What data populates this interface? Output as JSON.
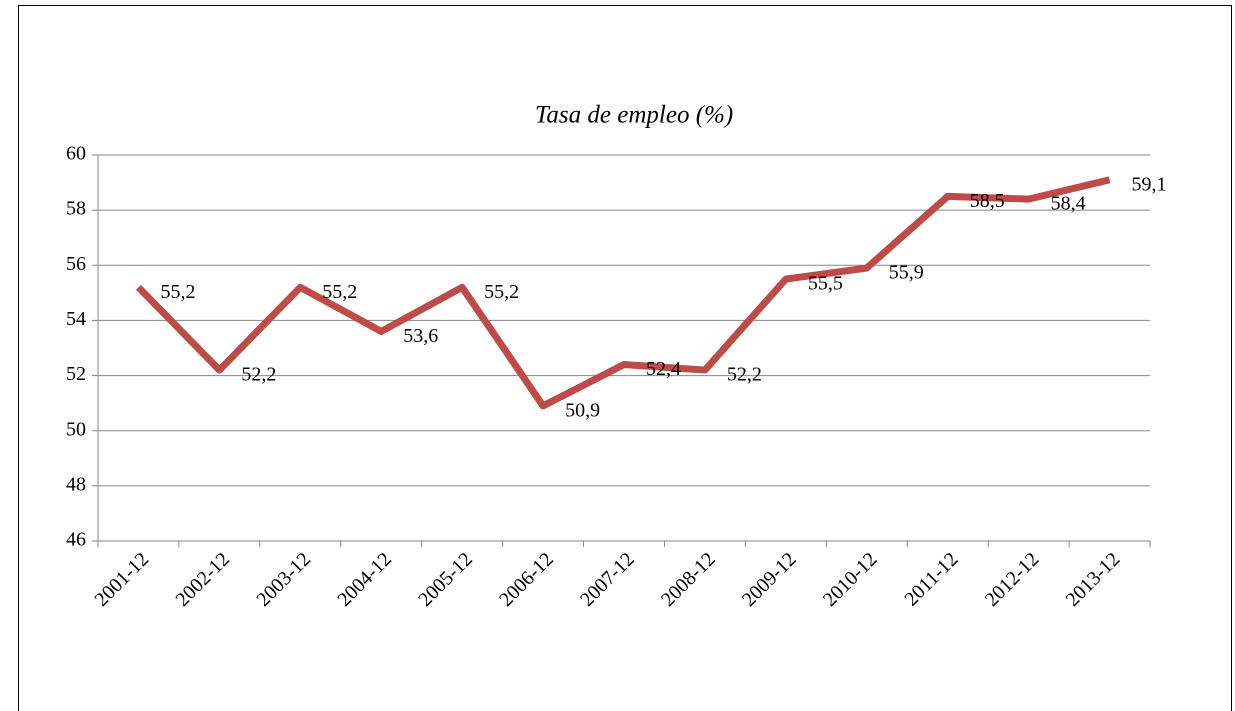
{
  "chart_data": {
    "type": "line",
    "title": "Tasa de empleo (%)",
    "categories": [
      "2001-12",
      "2002-12",
      "2003-12",
      "2004-12",
      "2005-12",
      "2006-12",
      "2007-12",
      "2008-12",
      "2009-12",
      "2010-12",
      "2011-12",
      "2012-12",
      "2013-12"
    ],
    "series": [
      {
        "name": "Tasa de empleo",
        "color": "#be4b48",
        "values": [
          55.2,
          52.2,
          55.2,
          53.6,
          55.2,
          50.9,
          52.4,
          52.2,
          55.5,
          55.9,
          58.5,
          58.4,
          59.1
        ],
        "value_labels": [
          "55,2",
          "52,2",
          "55,2",
          "53,6",
          "55,2",
          "50,9",
          "52,4",
          "52,2",
          "55,5",
          "55,9",
          "58,5",
          "58,4",
          "59,1"
        ]
      }
    ],
    "ylim": [
      46,
      60
    ],
    "yticks": [
      46,
      48,
      50,
      52,
      54,
      56,
      58,
      60
    ],
    "grid": true
  }
}
